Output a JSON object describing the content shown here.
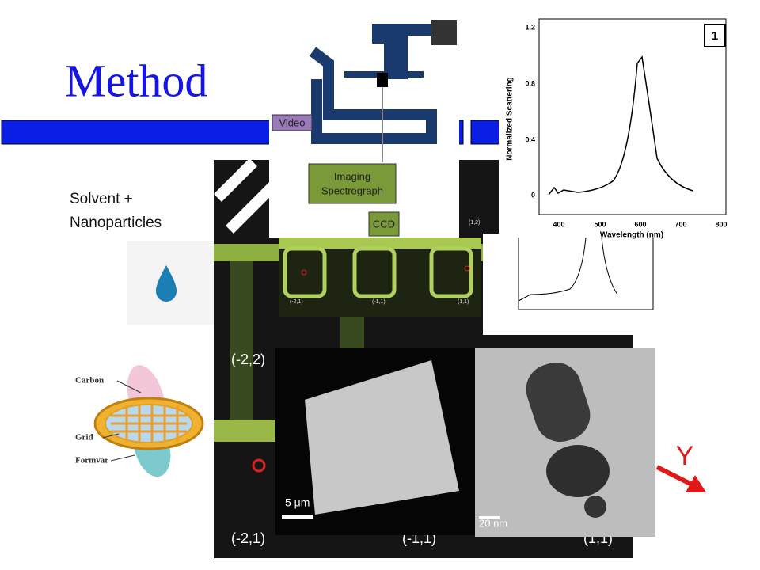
{
  "title": "Method",
  "sample_label": {
    "line1": "Solvent +",
    "line2": "Nanoparticles"
  },
  "tem_grid": {
    "carbon": "Carbon",
    "grid": "Grid",
    "formvar": "Formvar"
  },
  "setup": {
    "video": "Video",
    "spectrograph_line1": "Imaging",
    "spectrograph_line2": "Spectrograph",
    "ccd": "CCD"
  },
  "spectrum": {
    "panel": "1",
    "y_label": "Normalized Scattering",
    "x_label": "Wavelength (nm)",
    "y_ticks": [
      "0",
      "0.4",
      "0.8",
      "1.2"
    ],
    "x_ticks": [
      "400",
      "500",
      "600",
      "700",
      "800"
    ]
  },
  "grid_image": {
    "coords": [
      "(-2,2)",
      "(-2,1)",
      "(-1,1)",
      "(1,1)"
    ],
    "zoom_coords": [
      "(-2,1)",
      "(-1,1)",
      "(1,1)",
      "(1,2)"
    ],
    "axis": "Y"
  },
  "tem": {
    "scale_left": "5 μm",
    "scale_right": "20 nm"
  }
}
